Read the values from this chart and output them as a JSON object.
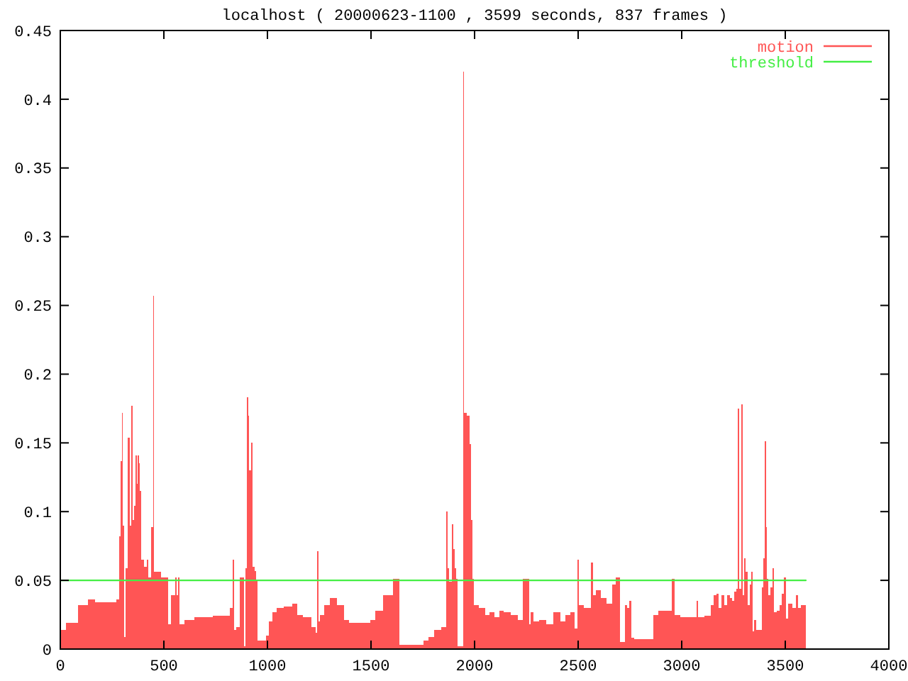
{
  "chart_data": {
    "type": "area",
    "title": "localhost ( 20000623-1100 , 3599 seconds, 837 frames )",
    "xlim": [
      0,
      4000
    ],
    "xticks": [
      0,
      500,
      1000,
      1500,
      2000,
      2500,
      3000,
      3500,
      4000
    ],
    "ylim": [
      0,
      0.45
    ],
    "yticks": [
      0,
      0.05,
      0.1,
      0.15,
      0.2,
      0.25,
      0.3,
      0.35,
      0.4,
      0.45
    ],
    "legend": "top right",
    "series": [
      {
        "name": "motion",
        "color": "#ff5555",
        "x": [
          0,
          52,
          121,
          144,
          190,
          258,
          281,
          285,
          295,
          301,
          305,
          309,
          320,
          333,
          337,
          349,
          353,
          361,
          367,
          371,
          376,
          381,
          388,
          395,
          413,
          420,
          432,
          445,
          450,
          454,
          518,
          521,
          548,
          559,
          563,
          573,
          577,
          623,
          669,
          806,
          829,
          836,
          840,
          860,
          874,
          886,
          889,
          896,
          904,
          909,
          915,
          925,
          931,
          943,
          950,
          954,
          989,
          1000,
          1011,
          1034,
          1057,
          1103,
          1137,
          1148,
          1194,
          1228,
          1235,
          1244,
          1248,
          1260,
          1285,
          1320,
          1354,
          1388,
          1400,
          1491,
          1502,
          1537,
          1582,
          1628,
          1646,
          1742,
          1765,
          1788,
          1822,
          1856,
          1868,
          1872,
          1884,
          1895,
          1900,
          1907,
          1914,
          1920,
          1943,
          1948,
          1952,
          1971,
          1978,
          1985,
          1993,
          2000,
          2039,
          2062,
          2085,
          2108,
          2131,
          2153,
          2199,
          2222,
          2245,
          2261,
          2265,
          2279,
          2290,
          2336,
          2359,
          2404,
          2427,
          2450,
          2473,
          2491,
          2500,
          2505,
          2553,
          2569,
          2573,
          2598,
          2621,
          2655,
          2674,
          2690,
          2701,
          2706,
          2724,
          2731,
          2742,
          2751,
          2761,
          2781,
          2861,
          2865,
          2907,
          2941,
          2964,
          2968,
          3021,
          3066,
          3078,
          3082,
          3135,
          3146,
          3162,
          3171,
          3185,
          3199,
          3215,
          3226,
          3238,
          3249,
          3260,
          3267,
          3272,
          3280,
          3292,
          3296,
          3306,
          3313,
          3322,
          3333,
          3340,
          3347,
          3354,
          3363,
          3381,
          3390,
          3397,
          3404,
          3409,
          3416,
          3423,
          3432,
          3443,
          3450,
          3466,
          3477,
          3489,
          3500,
          3505,
          3523,
          3546,
          3557,
          3569,
          3580,
          3599
        ],
        "values": [
          0.014,
          0.019,
          0.032,
          0.036,
          0.034,
          0.034,
          0.036,
          0.082,
          0.137,
          0.172,
          0.09,
          0.009,
          0.059,
          0.154,
          0.09,
          0.177,
          0.094,
          0.104,
          0.141,
          0.12,
          0.141,
          0.135,
          0.115,
          0.065,
          0.06,
          0.065,
          0.052,
          0.089,
          0.257,
          0.056,
          0.052,
          0.018,
          0.039,
          0.052,
          0.039,
          0.052,
          0.018,
          0.021,
          0.023,
          0.024,
          0.03,
          0.065,
          0.014,
          0.016,
          0.052,
          0.052,
          0.002,
          0.059,
          0.183,
          0.17,
          0.13,
          0.15,
          0.06,
          0.057,
          0.05,
          0.006,
          0.006,
          0.01,
          0.02,
          0.027,
          0.03,
          0.031,
          0.033,
          0.025,
          0.023,
          0.016,
          0.012,
          0.071,
          0.02,
          0.025,
          0.032,
          0.037,
          0.032,
          0.021,
          0.019,
          0.019,
          0.021,
          0.028,
          0.039,
          0.051,
          0.003,
          0.003,
          0.006,
          0.009,
          0.014,
          0.016,
          0.1,
          0.059,
          0.049,
          0.091,
          0.073,
          0.059,
          0.051,
          0.002,
          0.002,
          0.42,
          0.172,
          0.17,
          0.149,
          0.094,
          0.051,
          0.032,
          0.03,
          0.025,
          0.027,
          0.023,
          0.028,
          0.027,
          0.025,
          0.021,
          0.051,
          0.051,
          0.018,
          0.027,
          0.02,
          0.021,
          0.018,
          0.027,
          0.02,
          0.025,
          0.027,
          0.015,
          0.065,
          0.032,
          0.03,
          0.063,
          0.039,
          0.043,
          0.037,
          0.033,
          0.047,
          0.052,
          0.052,
          0.005,
          0.005,
          0.032,
          0.03,
          0.035,
          0.008,
          0.007,
          0.007,
          0.025,
          0.028,
          0.028,
          0.051,
          0.025,
          0.023,
          0.023,
          0.035,
          0.023,
          0.024,
          0.032,
          0.039,
          0.04,
          0.03,
          0.039,
          0.032,
          0.039,
          0.037,
          0.035,
          0.042,
          0.044,
          0.175,
          0.044,
          0.178,
          0.039,
          0.066,
          0.056,
          0.032,
          0.047,
          0.056,
          0.013,
          0.021,
          0.014,
          0.014,
          0.045,
          0.066,
          0.151,
          0.089,
          0.051,
          0.039,
          0.045,
          0.059,
          0.027,
          0.028,
          0.032,
          0.04,
          0.052,
          0.022,
          0.033,
          0.03,
          0.039,
          0.03,
          0.032,
          0.032
        ]
      },
      {
        "name": "threshold",
        "type": "line",
        "color": "#44ee44",
        "x": [
          0,
          3599
        ],
        "values": [
          0.05,
          0.05
        ]
      }
    ]
  }
}
